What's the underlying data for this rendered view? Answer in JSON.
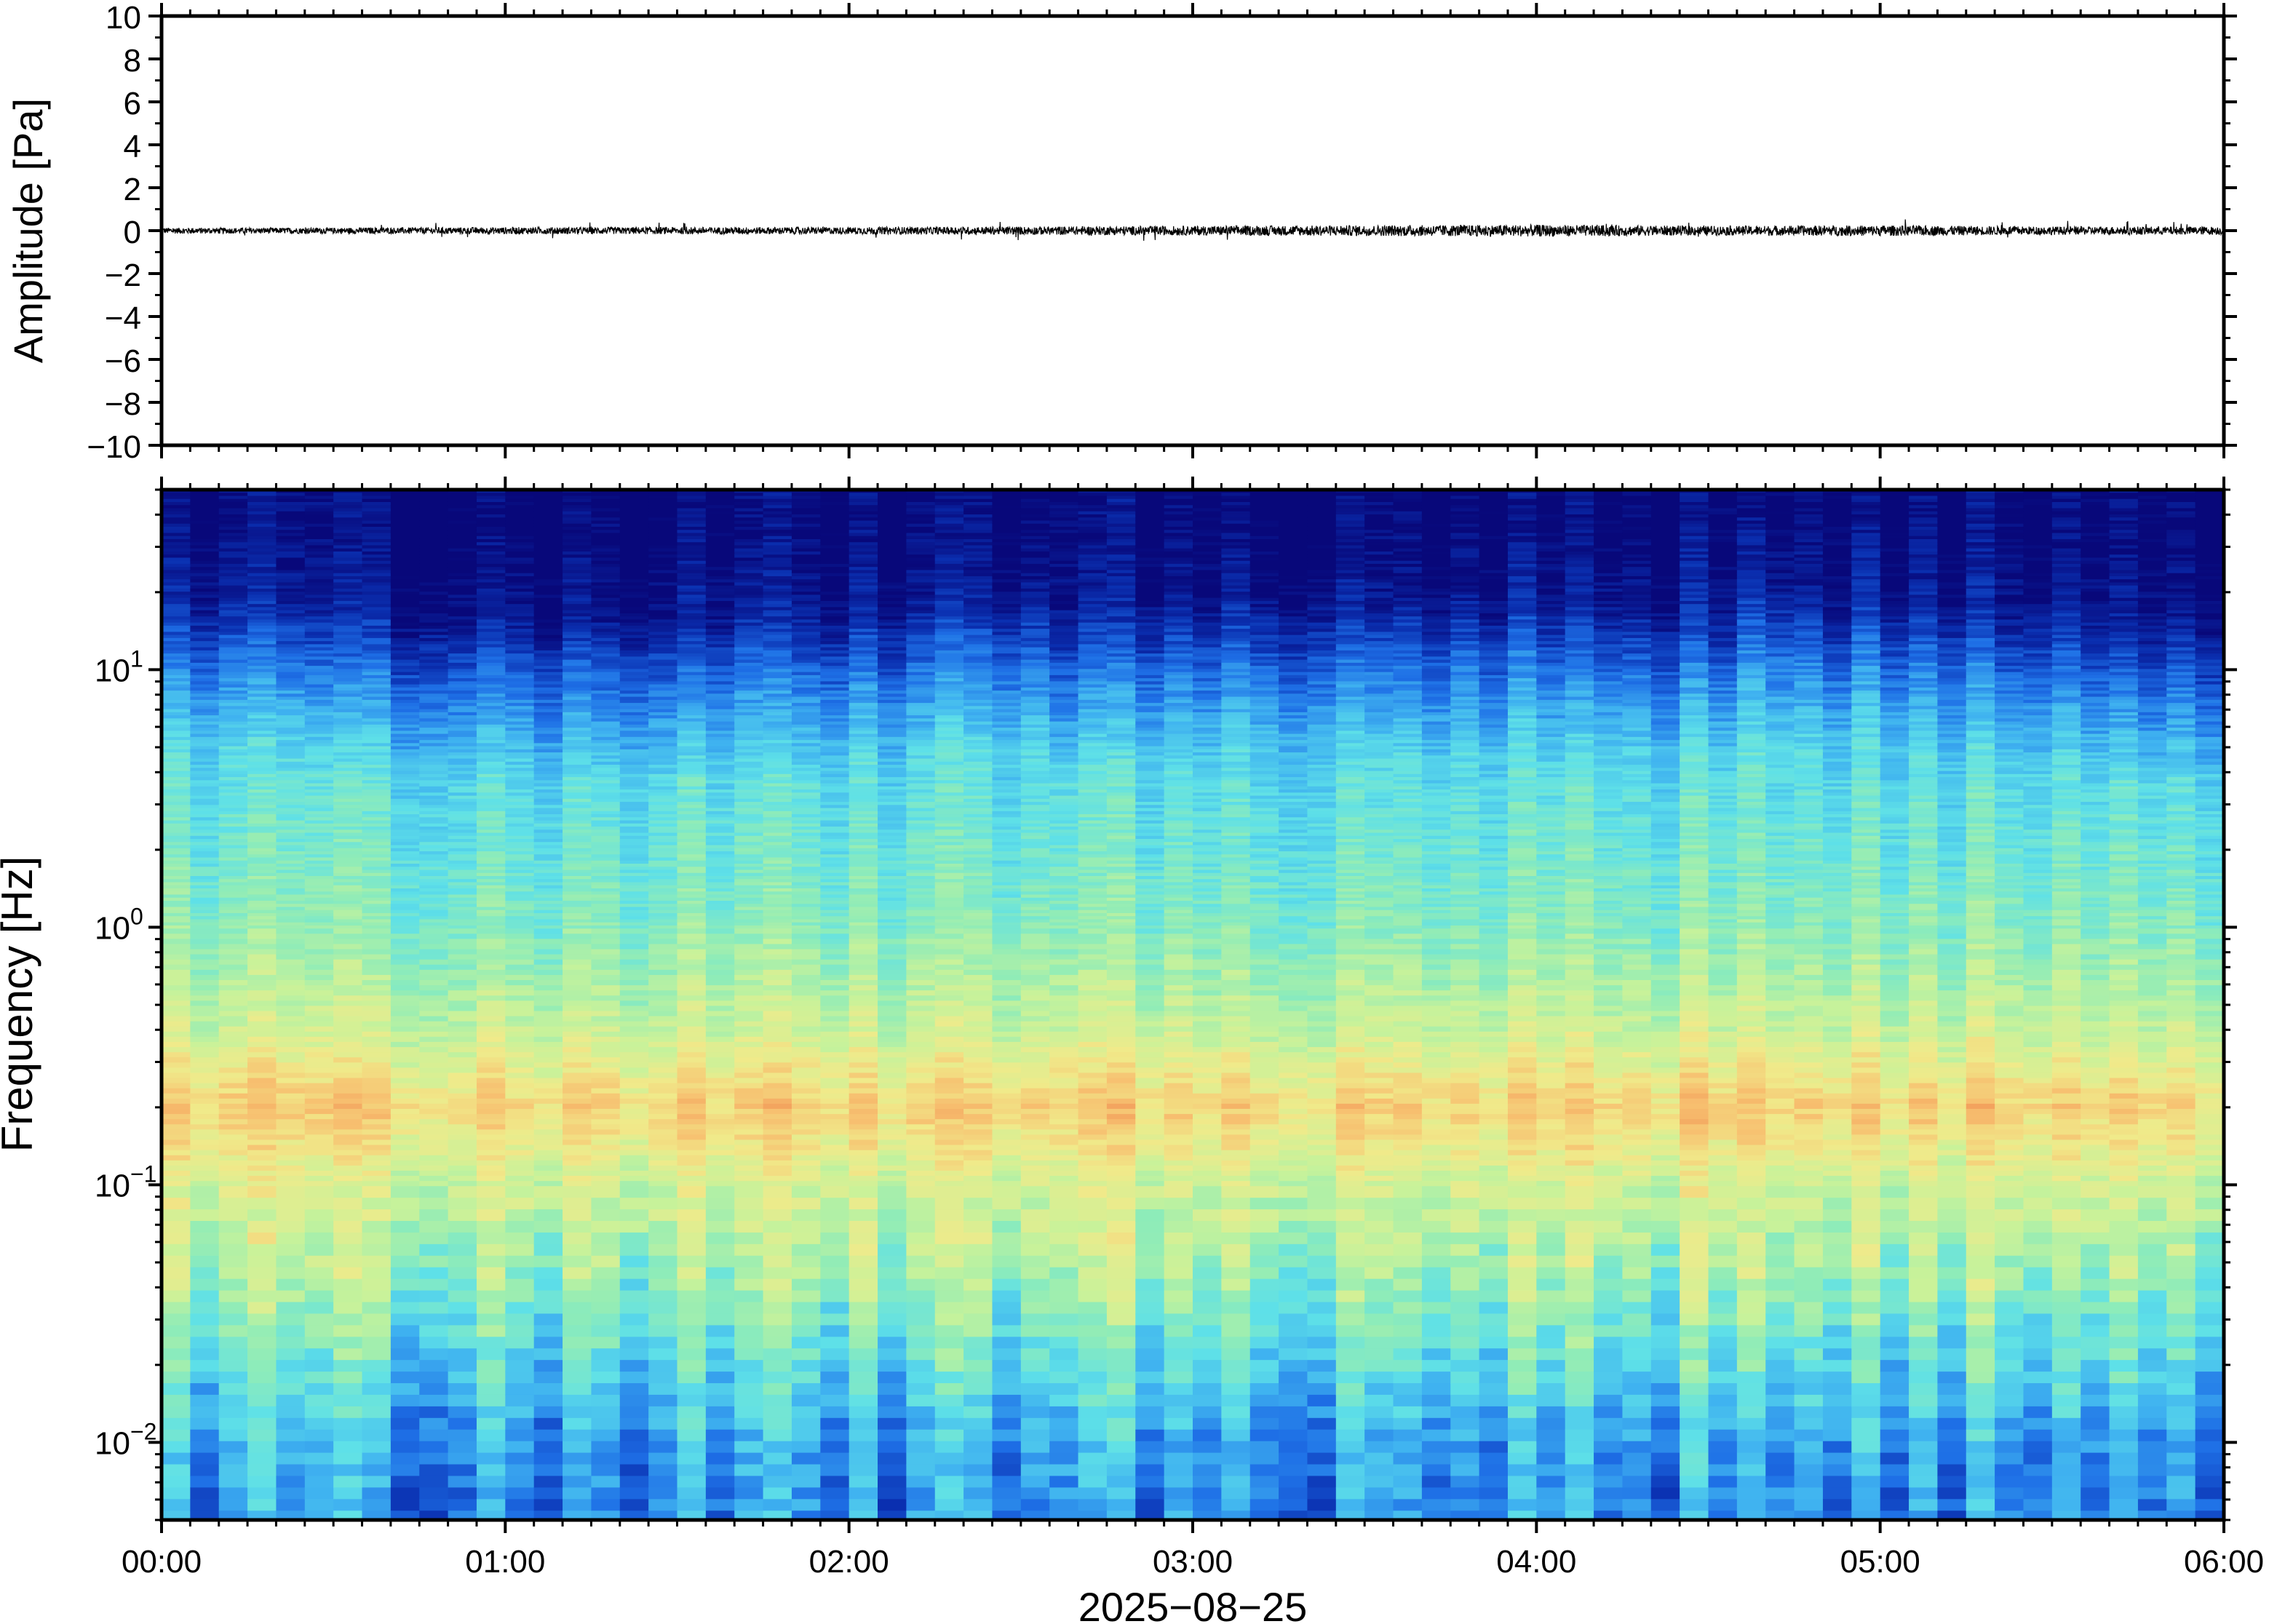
{
  "chart_data": [
    {
      "type": "line",
      "name": "waveform",
      "title": "",
      "ylabel": "Amplitude [Pa]",
      "xlabel": "",
      "ylim": [
        -10,
        10
      ],
      "yticks": [
        "10",
        "8",
        "6",
        "4",
        "2",
        "0",
        "−2",
        "−4",
        "−6",
        "−8",
        "−10"
      ],
      "ytick_values": [
        10,
        8,
        6,
        4,
        2,
        0,
        -2,
        -4,
        -6,
        -8,
        -10
      ],
      "series_color": "#000000",
      "baseline": 0,
      "noise_envelope": [
        {
          "t": 0.0,
          "amp": 0.25
        },
        {
          "t": 0.5,
          "amp": 0.25
        },
        {
          "t": 1.0,
          "amp": 0.3
        },
        {
          "t": 1.5,
          "amp": 0.3
        },
        {
          "t": 2.0,
          "amp": 0.3
        },
        {
          "t": 2.5,
          "amp": 0.35
        },
        {
          "t": 3.0,
          "amp": 0.4
        },
        {
          "t": 3.5,
          "amp": 0.45
        },
        {
          "t": 4.0,
          "amp": 0.5
        },
        {
          "t": 4.5,
          "amp": 0.4
        },
        {
          "t": 5.0,
          "amp": 0.45
        },
        {
          "t": 5.5,
          "amp": 0.35
        },
        {
          "t": 6.0,
          "amp": 0.35
        }
      ],
      "grid": false
    },
    {
      "type": "heatmap",
      "name": "spectrogram",
      "title": "",
      "ylabel": "Frequency [Hz]",
      "xlabel": "2025−08−25",
      "xlim_hours": [
        0,
        6
      ],
      "xticks": [
        "00:00",
        "01:00",
        "02:00",
        "03:00",
        "04:00",
        "05:00",
        "06:00"
      ],
      "xtick_hours": [
        0,
        1,
        2,
        3,
        4,
        5,
        6
      ],
      "yscale": "log",
      "ylim_hz": [
        0.005,
        50
      ],
      "yticks": [
        {
          "base": "10",
          "exp": "1",
          "value": 10
        },
        {
          "base": "10",
          "exp": "0",
          "value": 1
        },
        {
          "base": "10",
          "exp": "−1",
          "value": 0.1
        },
        {
          "base": "10",
          "exp": "−2",
          "value": 0.01
        }
      ],
      "colormap": [
        "#08087a",
        "#0a2fb0",
        "#1e6fe6",
        "#3fb2f0",
        "#5ee0e8",
        "#8fecb8",
        "#c8f29a",
        "#f0ea8a",
        "#f7c070",
        "#f08c50"
      ],
      "column_power_profile": [
        {
          "f": 40,
          "level": 0.0
        },
        {
          "f": 20,
          "level": 0.05
        },
        {
          "f": 10,
          "level": 0.25
        },
        {
          "f": 5,
          "level": 0.42
        },
        {
          "f": 1,
          "level": 0.55
        },
        {
          "f": 0.4,
          "level": 0.68
        },
        {
          "f": 0.2,
          "level": 0.85
        },
        {
          "f": 0.1,
          "level": 0.7
        },
        {
          "f": 0.05,
          "level": 0.62
        },
        {
          "f": 0.02,
          "level": 0.45
        },
        {
          "f": 0.01,
          "level": 0.32
        },
        {
          "f": 0.005,
          "level": 0.28
        }
      ],
      "grid": false
    }
  ]
}
